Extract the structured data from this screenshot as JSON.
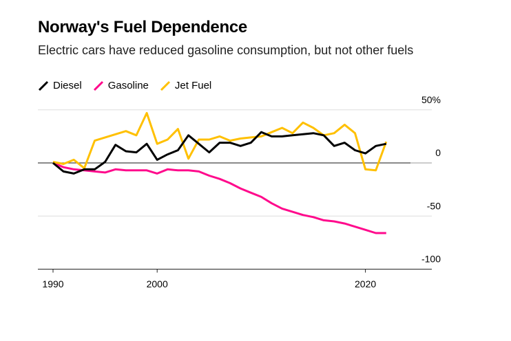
{
  "chart_data": {
    "type": "line",
    "title": "Norway's Fuel Dependence",
    "subtitle": "Electric cars have reduced gasoline consumption, but not other fuels",
    "xlabel": "",
    "ylabel": "",
    "x": [
      1990,
      1991,
      1992,
      1993,
      1994,
      1995,
      1996,
      1997,
      1998,
      1999,
      2000,
      2001,
      2002,
      2003,
      2004,
      2005,
      2006,
      2007,
      2008,
      2009,
      2010,
      2011,
      2012,
      2013,
      2014,
      2015,
      2016,
      2017,
      2018,
      2019,
      2020,
      2021,
      2022
    ],
    "xlim": [
      1988.5,
      2026
    ],
    "ylim": [
      -100,
      50
    ],
    "yticks": [
      {
        "v": 50,
        "label": "50%"
      },
      {
        "v": 0,
        "label": "0"
      },
      {
        "v": -50,
        "label": "-50"
      },
      {
        "v": -100,
        "label": "-100"
      }
    ],
    "xticks": [
      {
        "v": 1990,
        "label": "1990"
      },
      {
        "v": 2000,
        "label": "2000"
      },
      {
        "v": 2020,
        "label": "2020"
      }
    ],
    "grid": true,
    "legend_placement": "top-left",
    "series": [
      {
        "name": "Diesel",
        "color": "#000000",
        "values": [
          0,
          -8,
          -10,
          -6,
          -6,
          1,
          17,
          11,
          10,
          18,
          3,
          8,
          12,
          26,
          18,
          10,
          19,
          19,
          16,
          19,
          29,
          25,
          25,
          26,
          27,
          28,
          26,
          16,
          19,
          12,
          9,
          16,
          18
        ]
      },
      {
        "name": "Gasoline",
        "color": "#ff0a8c",
        "values": [
          0,
          -4,
          -6,
          -7,
          -8,
          -9,
          -6,
          -7,
          -7,
          -7,
          -10,
          -6,
          -7,
          -7,
          -8,
          -12,
          -15,
          -19,
          -24,
          -28,
          -32,
          -38,
          -43,
          -46,
          -49,
          -51,
          -54,
          -55,
          -57,
          -60,
          -63,
          -66,
          -66
        ]
      },
      {
        "name": "Jet Fuel",
        "color": "#ffc000",
        "values": [
          1,
          -1,
          3,
          -5,
          21,
          24,
          27,
          30,
          26,
          47,
          18,
          22,
          32,
          4,
          22,
          22,
          25,
          21,
          23,
          24,
          25,
          29,
          33,
          28,
          38,
          33,
          26,
          28,
          36,
          28,
          -6,
          -7,
          20
        ]
      }
    ]
  }
}
